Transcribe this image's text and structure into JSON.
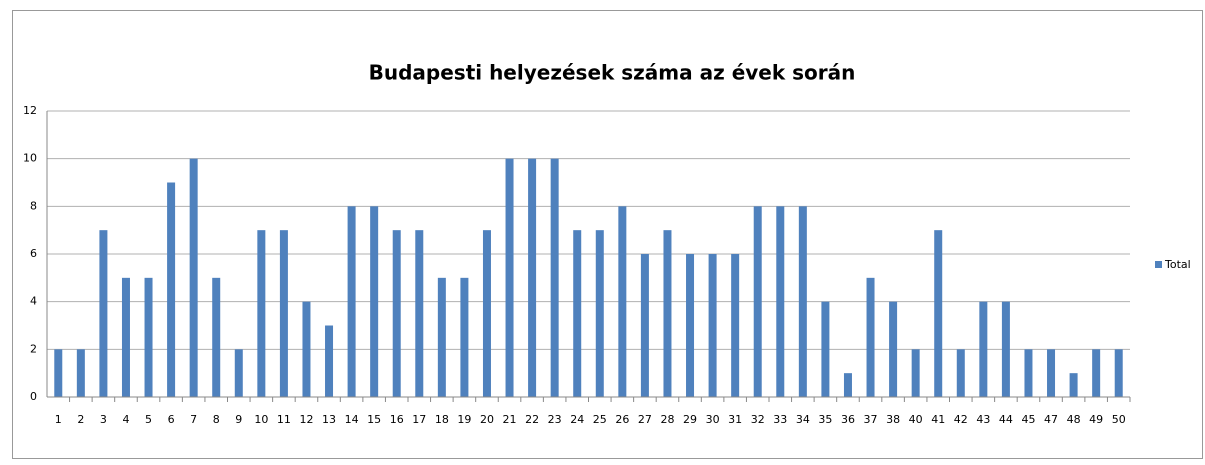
{
  "chart_data": {
    "type": "bar",
    "title": "Budapesti helyezések száma az évek során",
    "categories": [
      "1",
      "2",
      "3",
      "4",
      "5",
      "6",
      "7",
      "8",
      "9",
      "10",
      "11",
      "12",
      "13",
      "14",
      "15",
      "16",
      "17",
      "18",
      "19",
      "20",
      "21",
      "22",
      "23",
      "24",
      "25",
      "26",
      "27",
      "28",
      "29",
      "30",
      "31",
      "32",
      "33",
      "34",
      "35",
      "36",
      "37",
      "38",
      "40",
      "41",
      "42",
      "43",
      "44",
      "45",
      "47",
      "48",
      "49",
      "50"
    ],
    "series": [
      {
        "name": "Total",
        "color": "#4f81bd",
        "values": [
          2,
          2,
          7,
          5,
          5,
          9,
          10,
          5,
          2,
          7,
          7,
          4,
          3,
          8,
          8,
          7,
          7,
          5,
          5,
          7,
          10,
          10,
          10,
          7,
          7,
          8,
          6,
          7,
          6,
          6,
          6,
          8,
          8,
          8,
          4,
          1,
          5,
          4,
          2,
          7,
          2,
          4,
          4,
          2,
          2,
          1,
          2,
          2
        ]
      }
    ],
    "ylim": [
      0,
      12
    ],
    "yticks": [
      0,
      2,
      4,
      6,
      8,
      10,
      12
    ],
    "grid": true,
    "legend": "right"
  }
}
